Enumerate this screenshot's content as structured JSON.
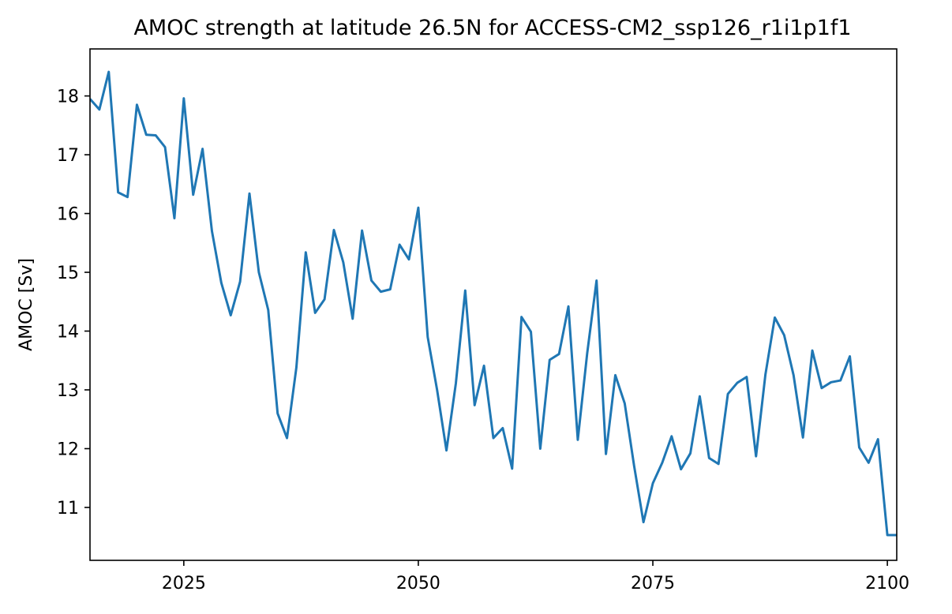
{
  "chart_data": {
    "type": "line",
    "title": "AMOC strength at latitude 26.5N for ACCESS-CM2_ssp126_r1i1p1f1",
    "xlabel": "",
    "ylabel": "AMOC [Sv]",
    "xlim": [
      2015,
      2101
    ],
    "ylim": [
      10.1,
      18.8
    ],
    "x_ticks": [
      2025,
      2050,
      2075,
      2100
    ],
    "y_ticks": [
      11,
      12,
      13,
      14,
      15,
      16,
      17,
      18
    ],
    "grid": false,
    "line_color": "#1f77b4",
    "series": [
      {
        "x": [
          2015,
          2016,
          2017,
          2018,
          2019,
          2020,
          2021,
          2022,
          2023,
          2024,
          2025,
          2026,
          2027,
          2028,
          2029,
          2030,
          2031,
          2032,
          2033,
          2034,
          2035,
          2036,
          2037,
          2038,
          2039,
          2040,
          2041,
          2042,
          2043,
          2044,
          2045,
          2046,
          2047,
          2048,
          2049,
          2050,
          2051,
          2052,
          2053,
          2054,
          2055,
          2056,
          2057,
          2058,
          2059,
          2060,
          2061,
          2062,
          2063,
          2064,
          2065,
          2066,
          2067,
          2068,
          2069,
          2070,
          2071,
          2072,
          2073,
          2074,
          2075,
          2076,
          2077,
          2078,
          2079,
          2080,
          2081,
          2082,
          2083,
          2084,
          2085,
          2086,
          2087,
          2088,
          2089,
          2090,
          2091,
          2092,
          2093,
          2094,
          2095,
          2096,
          2097,
          2098,
          2099,
          2100,
          2101
        ],
        "values": [
          17.95,
          17.77,
          18.41,
          16.36,
          16.28,
          17.85,
          17.34,
          17.33,
          17.13,
          15.92,
          17.96,
          16.32,
          17.1,
          15.7,
          14.82,
          14.27,
          14.84,
          16.34,
          15.0,
          14.36,
          12.6,
          12.18,
          13.38,
          15.34,
          14.31,
          14.54,
          15.72,
          15.17,
          14.21,
          15.71,
          14.86,
          14.67,
          14.71,
          15.47,
          15.22,
          16.1,
          13.9,
          13.0,
          11.97,
          13.11,
          14.69,
          12.74,
          13.41,
          12.18,
          12.35,
          11.66,
          14.24,
          13.99,
          12.0,
          13.51,
          13.61,
          14.42,
          12.15,
          13.62,
          14.86,
          11.91,
          13.25,
          12.77,
          11.71,
          10.75,
          11.41,
          11.76,
          12.21,
          11.65,
          11.92,
          12.89,
          11.84,
          11.74,
          12.93,
          13.12,
          13.22,
          11.87,
          13.26,
          14.23,
          13.93,
          13.25,
          12.19,
          13.67,
          13.03,
          13.13,
          13.16,
          13.57,
          12.02,
          11.76,
          12.16,
          10.53,
          10.53
        ]
      }
    ]
  }
}
